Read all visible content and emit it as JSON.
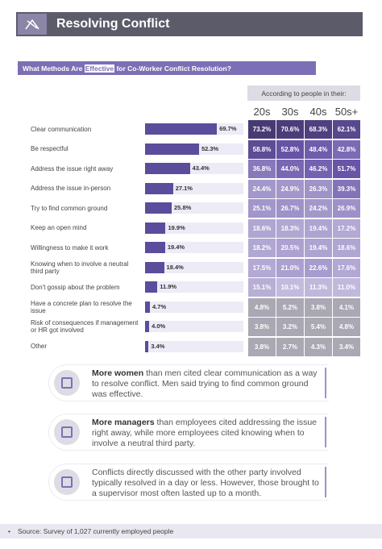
{
  "header": {
    "title": "Resolving Conflict"
  },
  "chart_data": [
    {
      "type": "bar",
      "title": [
        "What Methods Are ",
        "Effective",
        " for Co-Worker Conflict Resolution?"
      ],
      "categories": [
        "Clear communication",
        "Be respectful",
        "Address the issue right away",
        "Address the issue in-person",
        "Try to find common ground",
        "Keep an open mind",
        "Willingness to make it work",
        "Knowing when to involve a neutral third party",
        "Don't gossip about the problem",
        "Have a concrete plan to resolve the issue",
        "Risk of consequences if management or HR got involved",
        "Other"
      ],
      "values": [
        69.7,
        52.3,
        43.4,
        27.1,
        25.8,
        19.9,
        19.4,
        18.4,
        11.9,
        4.7,
        4.0,
        3.4
      ],
      "value_labels": [
        "69.7%",
        "52.3%",
        "43.4%",
        "27.1%",
        "25.8%",
        "19.9%",
        "19.4%",
        "18.4%",
        "11.9%",
        "4.7%",
        "4.0%",
        "3.4%"
      ],
      "color": "#5b4c9c"
    },
    {
      "type": "heatmap",
      "title": "According to people in their:",
      "columns": [
        "20s",
        "30s",
        "40s",
        "50s+"
      ],
      "values": [
        [
          73.2,
          70.6,
          68.3,
          62.1
        ],
        [
          58.8,
          52.8,
          48.4,
          42.8
        ],
        [
          36.8,
          44.0,
          46.2,
          51.7
        ],
        [
          24.4,
          24.9,
          26.3,
          39.3
        ],
        [
          25.1,
          26.7,
          24.2,
          26.9
        ],
        [
          18.6,
          18.3,
          19.4,
          17.2
        ],
        [
          18.2,
          20.5,
          19.4,
          18.6
        ],
        [
          17.5,
          21.0,
          22.6,
          17.6
        ],
        [
          15.1,
          10.1,
          11.3,
          11.0
        ],
        [
          4.8,
          5.2,
          3.8,
          4.1
        ],
        [
          3.8,
          3.2,
          5.4,
          4.8
        ],
        [
          3.8,
          2.7,
          4.3,
          3.4
        ]
      ],
      "value_labels": [
        [
          "73.2%",
          "70.6%",
          "68.3%",
          "62.1%"
        ],
        [
          "58.8%",
          "52.8%",
          "48.4%",
          "42.8%"
        ],
        [
          "36.8%",
          "44.0%",
          "46.2%",
          "51.7%"
        ],
        [
          "24.4%",
          "24.9%",
          "26.3%",
          "39.3%"
        ],
        [
          "25.1%",
          "26.7%",
          "24.2%",
          "26.9%"
        ],
        [
          "18.6%",
          "18.3%",
          "19.4%",
          "17.2%"
        ],
        [
          "18.2%",
          "20.5%",
          "19.4%",
          "18.6%"
        ],
        [
          "17.5%",
          "21.0%",
          "22.6%",
          "17.6%"
        ],
        [
          "15.1%",
          "10.1%",
          "11.3%",
          "11.0%"
        ],
        [
          "4.8%",
          "5.2%",
          "3.8%",
          "4.1%"
        ],
        [
          "3.8%",
          "3.2%",
          "5.4%",
          "4.8%"
        ],
        [
          "3.8%",
          "2.7%",
          "4.3%",
          "3.4%"
        ]
      ]
    }
  ],
  "notes": [
    {
      "bold": "More women",
      "text": " than men cited clear communication as a way to resolve conflict. Men said trying to find common ground was effective."
    },
    {
      "bold": "More managers",
      "text": " than employees cited addressing the issue right away, while more employees cited knowing when to involve a neutral third party."
    },
    {
      "text": "Conflicts directly discussed with the other party involved typically resolved in a day or less. However, those brought to a supervisor most often lasted up to a month."
    }
  ],
  "source": "Source: Survey of 1,027 currently employed people"
}
